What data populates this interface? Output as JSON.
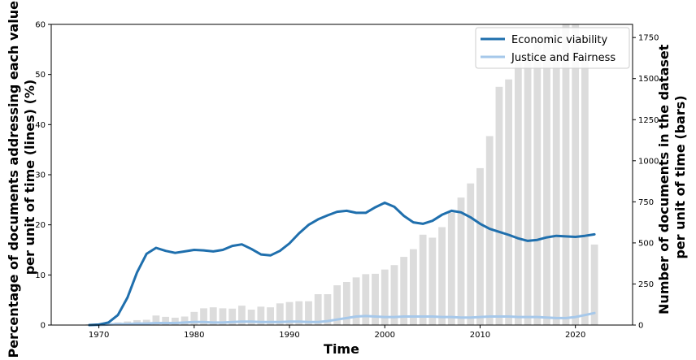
{
  "chart_data": {
    "type": "bar+line",
    "xlabel": "Time",
    "ylabel_left": "Percentage of documents addressing each value per unit of time (lines)  (%)",
    "ylabel_left_lines": [
      "Percentage of documents addressing each value",
      "per unit of time (lines)  (%)"
    ],
    "ylabel_right": "Number of documents in the dataset per unit of time (bars)",
    "ylabel_right_lines": [
      "Number of documents in the dataset",
      "per unit of time (bars)"
    ],
    "xlim": [
      1965,
      2026
    ],
    "ylim_left": [
      0,
      60
    ],
    "ylim_right": [
      0,
      1830
    ],
    "x_ticks": [
      1970,
      1980,
      1990,
      2000,
      2010,
      2020
    ],
    "y_left_ticks": [
      0,
      10,
      20,
      30,
      40,
      50,
      60
    ],
    "y_right_ticks": [
      0,
      250,
      500,
      750,
      1000,
      1250,
      1500,
      1750
    ],
    "legend_position": "top-right",
    "grid": false,
    "bars": {
      "color": "#dcdcdc",
      "x": [
        1969,
        1970,
        1971,
        1972,
        1973,
        1974,
        1975,
        1976,
        1977,
        1978,
        1979,
        1980,
        1981,
        1982,
        1983,
        1984,
        1985,
        1986,
        1987,
        1988,
        1989,
        1990,
        1991,
        1992,
        1993,
        1994,
        1995,
        1996,
        1997,
        1998,
        1999,
        2000,
        2001,
        2002,
        2003,
        2004,
        2005,
        2006,
        2007,
        2008,
        2009,
        2010,
        2011,
        2012,
        2013,
        2014,
        2015,
        2016,
        2017,
        2018,
        2019,
        2020,
        2021,
        2022
      ],
      "values": [
        5,
        8,
        12,
        16,
        22,
        30,
        32,
        58,
        50,
        45,
        52,
        80,
        102,
        108,
        102,
        100,
        118,
        94,
        112,
        108,
        132,
        140,
        145,
        145,
        188,
        188,
        242,
        262,
        290,
        310,
        312,
        338,
        365,
        415,
        462,
        550,
        532,
        596,
        685,
        776,
        862,
        955,
        1150,
        1450,
        1495,
        1600,
        1640,
        1720,
        1760,
        1800,
        1830,
        1830,
        1620,
        490
      ]
    },
    "series": [
      {
        "name": "Economic viability",
        "color": "#1f6fad",
        "x": [
          1969,
          1970,
          1971,
          1972,
          1973,
          1974,
          1975,
          1976,
          1977,
          1978,
          1979,
          1980,
          1981,
          1982,
          1983,
          1984,
          1985,
          1986,
          1987,
          1988,
          1989,
          1990,
          1991,
          1992,
          1993,
          1994,
          1995,
          1996,
          1997,
          1998,
          1999,
          2000,
          2001,
          2002,
          2003,
          2004,
          2005,
          2006,
          2007,
          2008,
          2009,
          2010,
          2011,
          2012,
          2013,
          2014,
          2015,
          2016,
          2017,
          2018,
          2019,
          2020,
          2021,
          2022
        ],
        "values": [
          0,
          0.1,
          0.5,
          2,
          5.5,
          10.5,
          14.2,
          15.4,
          14.8,
          14.4,
          14.7,
          15,
          14.9,
          14.7,
          15,
          15.8,
          16.1,
          15.2,
          14.1,
          13.9,
          14.8,
          16.3,
          18.3,
          20,
          21.1,
          21.9,
          22.6,
          22.8,
          22.4,
          22.4,
          23.5,
          24.4,
          23.6,
          21.8,
          20.5,
          20.2,
          20.8,
          22,
          22.8,
          22.5,
          21.5,
          20.2,
          19.2,
          18.6,
          18,
          17.3,
          16.8,
          17,
          17.5,
          17.8,
          17.7,
          17.6,
          17.8,
          18.1
        ]
      },
      {
        "name": "Justice and Fairness",
        "color": "#a6c8ea",
        "x": [
          1969,
          1970,
          1971,
          1972,
          1973,
          1974,
          1975,
          1976,
          1977,
          1978,
          1979,
          1980,
          1981,
          1982,
          1983,
          1984,
          1985,
          1986,
          1987,
          1988,
          1989,
          1990,
          1991,
          1992,
          1993,
          1994,
          1995,
          1996,
          1997,
          1998,
          1999,
          2000,
          2001,
          2002,
          2003,
          2004,
          2005,
          2006,
          2007,
          2008,
          2009,
          2010,
          2011,
          2012,
          2013,
          2014,
          2015,
          2016,
          2017,
          2018,
          2019,
          2020,
          2021,
          2022
        ],
        "values": [
          0,
          0,
          0.1,
          0.2,
          0.2,
          0.3,
          0.3,
          0.4,
          0.4,
          0.4,
          0.5,
          0.6,
          0.6,
          0.5,
          0.5,
          0.6,
          0.7,
          0.7,
          0.6,
          0.6,
          0.6,
          0.7,
          0.7,
          0.6,
          0.6,
          0.8,
          1.1,
          1.4,
          1.7,
          1.8,
          1.7,
          1.6,
          1.6,
          1.7,
          1.7,
          1.7,
          1.7,
          1.6,
          1.6,
          1.5,
          1.5,
          1.6,
          1.7,
          1.7,
          1.7,
          1.6,
          1.6,
          1.6,
          1.5,
          1.4,
          1.4,
          1.6,
          2.0,
          2.4
        ]
      }
    ]
  }
}
